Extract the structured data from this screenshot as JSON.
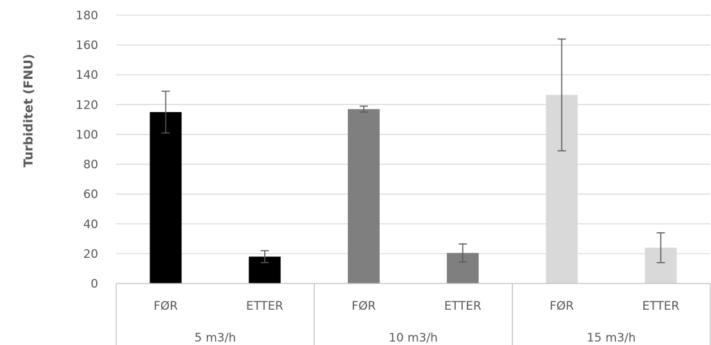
{
  "chart_data": {
    "type": "bar",
    "title": "",
    "ylabel": "Turbiditet (FNU)",
    "xlabel": "",
    "ylim": [
      0,
      180
    ],
    "yticks": [
      0,
      20,
      40,
      60,
      80,
      100,
      120,
      140,
      160,
      180
    ],
    "grid": true,
    "legend": "none",
    "groups": [
      {
        "label": "5 m3/h",
        "color": "#000000",
        "bars": [
          {
            "category": "FØR",
            "value": 115,
            "error": 14
          },
          {
            "category": "ETTER",
            "value": 18,
            "error": 4
          }
        ]
      },
      {
        "label": "10 m3/h",
        "color": "#7f7f7f",
        "bars": [
          {
            "category": "FØR",
            "value": 117,
            "error": 2
          },
          {
            "category": "ETTER",
            "value": 20.5,
            "error": 6
          }
        ]
      },
      {
        "label": "15 m3/h",
        "color": "#d9d9d9",
        "bars": [
          {
            "category": "FØR",
            "value": 126.5,
            "error": 37.5
          },
          {
            "category": "ETTER",
            "value": 24,
            "error": 10
          }
        ]
      }
    ]
  }
}
